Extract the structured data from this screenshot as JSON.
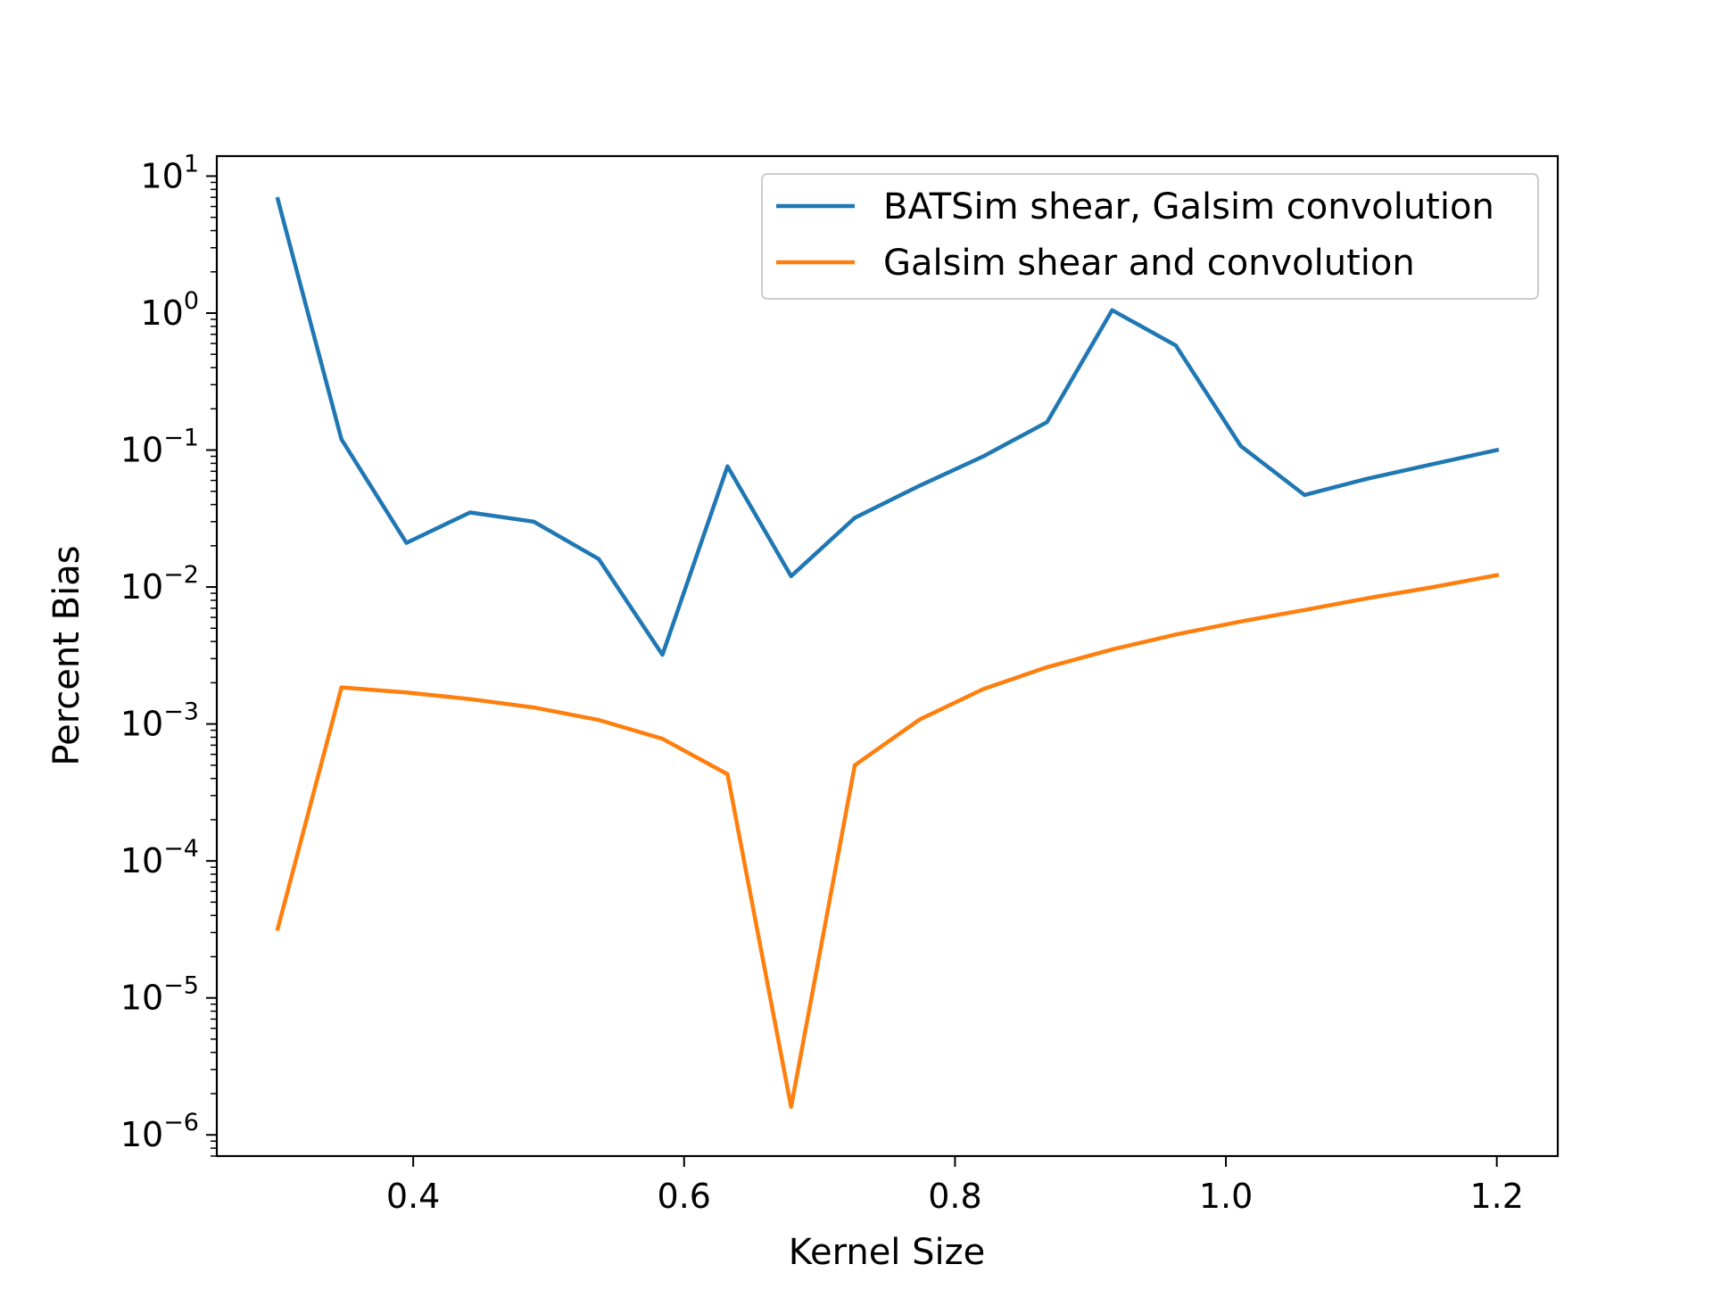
{
  "chart_data": {
    "type": "line",
    "title": "",
    "xlabel": "Kernel Size",
    "ylabel": "Percent Bias",
    "xlim": [
      0.255,
      1.245
    ],
    "ylim": [
      7e-07,
      14
    ],
    "yscale": "log",
    "grid": false,
    "legend_position": "top-right",
    "xticks": [
      0.4,
      0.6,
      0.8,
      1.0,
      1.2
    ],
    "xtick_labels": [
      "0.4",
      "0.6",
      "0.8",
      "1.0",
      "1.2"
    ],
    "yticks": [
      {
        "value": 1e-06,
        "base": "10",
        "exp": "−6"
      },
      {
        "value": 1e-05,
        "base": "10",
        "exp": "−5"
      },
      {
        "value": 0.0001,
        "base": "10",
        "exp": "−4"
      },
      {
        "value": 0.001,
        "base": "10",
        "exp": "−3"
      },
      {
        "value": 0.01,
        "base": "10",
        "exp": "−2"
      },
      {
        "value": 0.1,
        "base": "10",
        "exp": "−1"
      },
      {
        "value": 1,
        "base": "10",
        "exp": "0"
      },
      {
        "value": 10,
        "base": "10",
        "exp": "1"
      }
    ],
    "x": [
      0.3,
      0.347,
      0.395,
      0.442,
      0.489,
      0.537,
      0.584,
      0.632,
      0.679,
      0.726,
      0.774,
      0.821,
      0.868,
      0.916,
      0.963,
      1.011,
      1.058,
      1.105,
      1.153,
      1.2
    ],
    "series": [
      {
        "name": "BATSim shear, Galsim convolution",
        "color": "#1f77b4",
        "values": [
          6.8,
          0.12,
          0.021,
          0.035,
          0.03,
          0.016,
          0.0032,
          0.076,
          0.012,
          0.032,
          0.055,
          0.09,
          0.16,
          1.05,
          0.58,
          0.107,
          0.047,
          0.062,
          0.079,
          0.1
        ]
      },
      {
        "name": "Galsim shear and convolution",
        "color": "#ff7f0e",
        "values": [
          3.2e-05,
          0.00185,
          0.0017,
          0.00152,
          0.00132,
          0.00107,
          0.00078,
          0.00043,
          1.6e-06,
          0.0005,
          0.00108,
          0.0018,
          0.0026,
          0.0035,
          0.0045,
          0.0056,
          0.0068,
          0.0083,
          0.01,
          0.0122
        ]
      }
    ]
  }
}
